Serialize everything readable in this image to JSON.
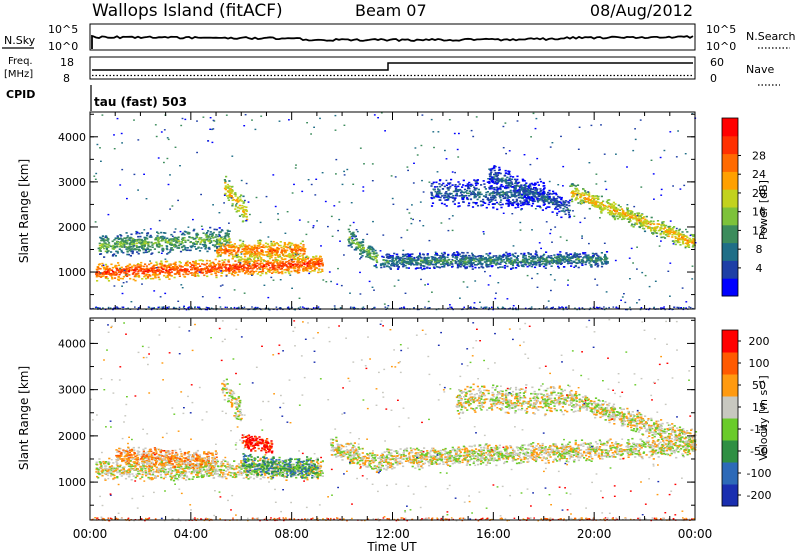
{
  "header": {
    "station": "Wallops Island (fitACF)",
    "beam": "Beam 07",
    "date": "08/Aug/2012"
  },
  "top_panels": {
    "nsky_label": "N.Sky",
    "nsearch_label": "N.Search",
    "freq_label_1": "Freq.",
    "freq_label_2": "[MHz]",
    "nave_label": "Nave",
    "cpid_label": "CPID",
    "cpid_value": "tau (fast) 503",
    "noise_ticks_left": [
      "10^5",
      "10^0"
    ],
    "noise_ticks_right": [
      "10^5",
      "10^0"
    ],
    "freq_ticks": [
      "18",
      "8"
    ],
    "nave_ticks": [
      "60",
      "0"
    ]
  },
  "chart_data": [
    {
      "type": "heatmap",
      "title": "",
      "ylabel": "Slant Range [km]",
      "xlabel": "Time UT",
      "xlim": [
        0,
        24
      ],
      "ylim": [
        180,
        4550
      ],
      "yticks": [
        "1000",
        "2000",
        "3000",
        "4000"
      ],
      "xticks": [
        "00:00",
        "04:00",
        "08:00",
        "12:00",
        "16:00",
        "20:00",
        "00:00"
      ],
      "colorbar": {
        "label": "Power [dB]",
        "ticks": [
          "4",
          "8",
          "12",
          "16",
          "20",
          "24",
          "28"
        ],
        "colors": [
          "#0000ff",
          "#1e3fa6",
          "#1f6e87",
          "#3c8c5c",
          "#7dc23a",
          "#c2d21e",
          "#ffa000",
          "#ff6a00",
          "#ff3000",
          "#ff0000"
        ]
      },
      "features": [
        {
          "t0": 0.2,
          "t1": 9.2,
          "r_start": 1000,
          "r_end": 1200,
          "w": 220,
          "level": 8
        },
        {
          "t0": 0.3,
          "t1": 5.5,
          "r_start": 1600,
          "r_end": 1750,
          "w": 280,
          "level": 4
        },
        {
          "t0": 5.0,
          "t1": 8.5,
          "r_start": 1500,
          "r_end": 1500,
          "w": 260,
          "level": 7
        },
        {
          "t0": 5.3,
          "t1": 6.2,
          "r_start": 2900,
          "r_end": 2300,
          "w": 300,
          "level": 6
        },
        {
          "t0": 10.2,
          "t1": 11.4,
          "r_start": 1800,
          "r_end": 1300,
          "w": 260,
          "level": 4
        },
        {
          "t0": 11.5,
          "t1": 20.5,
          "r_start": 1250,
          "r_end": 1300,
          "w": 200,
          "level": 3
        },
        {
          "t0": 19.0,
          "t1": 24.0,
          "r_start": 2800,
          "r_end": 1650,
          "w": 220,
          "level": 6
        },
        {
          "t0": 13.5,
          "t1": 18.0,
          "r_start": 2800,
          "r_end": 2700,
          "w": 350,
          "level": 2
        },
        {
          "t0": 15.8,
          "t1": 19.0,
          "r_start": 3200,
          "r_end": 2400,
          "w": 260,
          "level": 2
        }
      ]
    },
    {
      "type": "heatmap",
      "title": "",
      "ylabel": "Slant Range [km]",
      "xlabel": "Time UT",
      "xlim": [
        0,
        24
      ],
      "ylim": [
        180,
        4550
      ],
      "yticks": [
        "1000",
        "2000",
        "3000",
        "4000"
      ],
      "xticks": [
        "00:00",
        "04:00",
        "08:00",
        "12:00",
        "16:00",
        "20:00",
        "00:00"
      ],
      "colorbar": {
        "label": "Velocity [m s⁻¹]",
        "ticks": [
          "200",
          "100",
          "50",
          "15",
          "-15",
          "-50",
          "-100",
          "-200"
        ],
        "colors": [
          "#1a2fb0",
          "#2d6ab8",
          "#2f8f43",
          "#6acb2b",
          "#c8c8c0",
          "#ff9a10",
          "#ff5a00",
          "#ff0000"
        ]
      },
      "features": [
        {
          "t0": 0.2,
          "t1": 9.2,
          "r_start": 1300,
          "r_end": 1300,
          "w": 260,
          "level": 4
        },
        {
          "t0": 1.0,
          "t1": 5.0,
          "r_start": 1600,
          "r_end": 1500,
          "w": 220,
          "level": 5
        },
        {
          "t0": 5.2,
          "t1": 6.0,
          "r_start": 3100,
          "r_end": 2500,
          "w": 300,
          "level": 4
        },
        {
          "t0": 6.0,
          "t1": 9.0,
          "r_start": 1400,
          "r_end": 1300,
          "w": 260,
          "level": 2
        },
        {
          "t0": 6.0,
          "t1": 7.2,
          "r_start": 1900,
          "r_end": 1800,
          "w": 200,
          "level": 7
        },
        {
          "t0": 11.5,
          "t1": 24.0,
          "r_start": 1500,
          "r_end": 1800,
          "w": 250,
          "level": 4
        },
        {
          "t0": 19.0,
          "t1": 24.0,
          "r_start": 2800,
          "r_end": 1900,
          "w": 250,
          "level": 4
        },
        {
          "t0": 14.5,
          "t1": 19.0,
          "r_start": 2800,
          "r_end": 2800,
          "w": 350,
          "level": 4
        },
        {
          "t0": 9.5,
          "t1": 11.5,
          "r_start": 1800,
          "r_end": 1400,
          "w": 260,
          "level": 4
        }
      ]
    }
  ],
  "colors": {
    "axis": "#000000",
    "background": "#ffffff"
  }
}
